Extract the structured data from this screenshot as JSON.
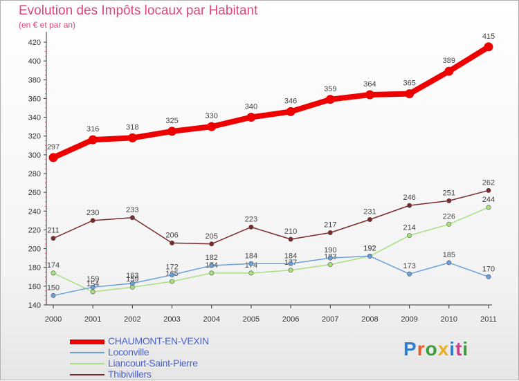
{
  "chart_data": {
    "type": "line",
    "title": "Evolution des Impôts locaux par Habitant",
    "subtitle": "(en € et par an)",
    "categories": [
      "2000",
      "2001",
      "2002",
      "2003",
      "2004",
      "2005",
      "2006",
      "2007",
      "2008",
      "2009",
      "2010",
      "2011"
    ],
    "ylim": [
      140,
      420
    ],
    "yticks": [
      140,
      160,
      180,
      200,
      220,
      240,
      260,
      280,
      300,
      320,
      340,
      360,
      380,
      400,
      420
    ],
    "series": [
      {
        "name": "CHAUMONT-EN-VEXIN",
        "color": "#ee0000",
        "values": [
          297,
          316,
          318,
          325,
          330,
          340,
          346,
          359,
          364,
          365,
          389,
          415
        ]
      },
      {
        "name": "Loconville",
        "color": "#6aa0d8",
        "values": [
          150,
          159,
          163,
          172,
          182,
          184,
          184,
          190,
          192,
          173,
          185,
          170
        ]
      },
      {
        "name": "Liancourt-Saint-Pierre",
        "color": "#a8e080",
        "values": [
          174,
          154,
          159,
          165,
          174,
          174,
          177,
          183,
          192,
          214,
          226,
          244
        ]
      },
      {
        "name": "Thibivillers",
        "color": "#7a2a2a",
        "values": [
          211,
          230,
          233,
          206,
          205,
          223,
          210,
          217,
          231,
          246,
          251,
          262
        ]
      }
    ],
    "legend_position": "bottom-left"
  },
  "logo": {
    "text": "Proxiti",
    "colors": [
      "#2f7fd0",
      "#e95a2a",
      "#3a9f3a",
      "#e9b020",
      "#2f7fd0",
      "#d03a8a",
      "#3a9f3a"
    ]
  }
}
